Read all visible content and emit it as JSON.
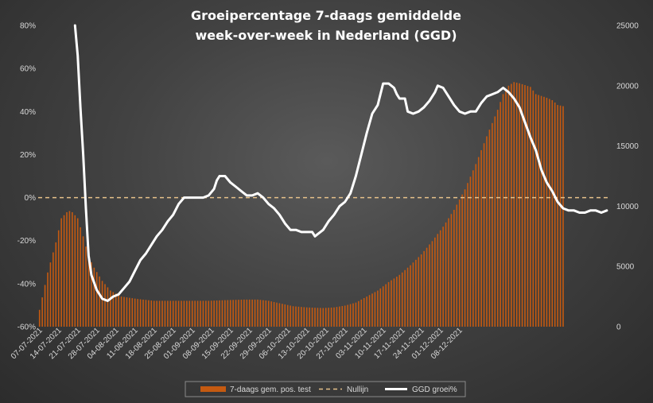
{
  "chart_data": {
    "type": "bar+line",
    "title": [
      "Groeipercentage 7-daags gemiddelde",
      "week-over-week in Nederland (GGD)"
    ],
    "x_dates": [
      "07-07-2021",
      "14-07-2021",
      "21-07-2021",
      "28-07-2021",
      "04-08-2021",
      "11-08-2021",
      "18-08-2021",
      "25-08-2021",
      "01-09-2021",
      "08-09-2021",
      "15-09-2021",
      "22-09-2021",
      "29-09-2021",
      "06-10-2021",
      "13-10-2021",
      "20-10-2021",
      "27-10-2021",
      "03-11-2021",
      "10-11-2021",
      "17-11-2021",
      "24-11-2021",
      "01-12-2021",
      "08-12-2021"
    ],
    "y_left": {
      "ticks": [
        "80%",
        "60%",
        "40%",
        "20%",
        "0%",
        "-20%",
        "-40%",
        "-60%"
      ],
      "min": -60,
      "max": 80
    },
    "y_right": {
      "ticks": [
        "25000",
        "20000",
        "15000",
        "10000",
        "5000",
        "0"
      ],
      "min": 0,
      "max": 25000
    },
    "bar_series": {
      "name": "7-daags gem. pos. test",
      "color": "#c55a11",
      "anchors": [
        [
          0,
          1400
        ],
        [
          3,
          4500
        ],
        [
          6,
          7000
        ],
        [
          8,
          9000
        ],
        [
          10,
          9500
        ],
        [
          11,
          9600
        ],
        [
          12,
          9500
        ],
        [
          14,
          9000
        ],
        [
          16,
          7500
        ],
        [
          18,
          5800
        ],
        [
          20,
          4900
        ],
        [
          23,
          3800
        ],
        [
          26,
          3000
        ],
        [
          30,
          2500
        ],
        [
          36,
          2300
        ],
        [
          42,
          2150
        ],
        [
          50,
          2150
        ],
        [
          56,
          2150
        ],
        [
          62,
          2150
        ],
        [
          68,
          2200
        ],
        [
          75,
          2250
        ],
        [
          80,
          2250
        ],
        [
          84,
          2150
        ],
        [
          88,
          1950
        ],
        [
          93,
          1700
        ],
        [
          98,
          1600
        ],
        [
          104,
          1550
        ],
        [
          108,
          1600
        ],
        [
          112,
          1750
        ],
        [
          116,
          2000
        ],
        [
          120,
          2500
        ],
        [
          124,
          3000
        ],
        [
          128,
          3700
        ],
        [
          132,
          4300
        ],
        [
          136,
          5100
        ],
        [
          140,
          6000
        ],
        [
          144,
          7100
        ],
        [
          148,
          8300
        ],
        [
          152,
          9700
        ],
        [
          156,
          11400
        ],
        [
          160,
          13500
        ],
        [
          164,
          15800
        ],
        [
          168,
          18000
        ],
        [
          170,
          19300
        ],
        [
          172,
          20000
        ],
        [
          174,
          20300
        ],
        [
          176,
          20200
        ],
        [
          180,
          19900
        ],
        [
          182,
          19300
        ],
        [
          186,
          19000
        ],
        [
          188,
          18800
        ],
        [
          190,
          18400
        ],
        [
          192,
          18300
        ]
      ]
    },
    "line_series": {
      "name": "GGD groei%",
      "color": "#ffffff",
      "points": [
        [
          13,
          80
        ],
        [
          14,
          66
        ],
        [
          15,
          42
        ],
        [
          16,
          20
        ],
        [
          17,
          -5
        ],
        [
          18,
          -27
        ],
        [
          19,
          -36
        ],
        [
          21,
          -43
        ],
        [
          23,
          -47
        ],
        [
          25,
          -48
        ],
        [
          27,
          -46
        ],
        [
          29,
          -45
        ],
        [
          31,
          -42
        ],
        [
          33,
          -39
        ],
        [
          35,
          -34
        ],
        [
          37,
          -29
        ],
        [
          39,
          -26
        ],
        [
          41,
          -22
        ],
        [
          43,
          -18
        ],
        [
          45,
          -15
        ],
        [
          47,
          -11
        ],
        [
          49,
          -8
        ],
        [
          51,
          -3
        ],
        [
          53,
          0
        ],
        [
          55,
          0
        ],
        [
          58,
          0
        ],
        [
          60,
          0
        ],
        [
          62,
          1
        ],
        [
          64,
          4
        ],
        [
          65,
          8
        ],
        [
          66,
          10
        ],
        [
          68,
          10
        ],
        [
          70,
          7
        ],
        [
          72,
          5
        ],
        [
          74,
          3
        ],
        [
          76,
          1
        ],
        [
          78,
          1
        ],
        [
          80,
          2
        ],
        [
          82,
          0
        ],
        [
          84,
          -3
        ],
        [
          86,
          -5
        ],
        [
          88,
          -8
        ],
        [
          90,
          -12
        ],
        [
          92,
          -15
        ],
        [
          94,
          -15
        ],
        [
          96,
          -16
        ],
        [
          98,
          -16
        ],
        [
          100,
          -16
        ],
        [
          101,
          -18
        ],
        [
          102,
          -17
        ],
        [
          104,
          -15
        ],
        [
          106,
          -11
        ],
        [
          108,
          -8
        ],
        [
          110,
          -4
        ],
        [
          112,
          -2
        ],
        [
          114,
          2
        ],
        [
          116,
          10
        ],
        [
          118,
          20
        ],
        [
          120,
          30
        ],
        [
          122,
          39
        ],
        [
          124,
          43
        ],
        [
          125,
          48
        ],
        [
          126,
          53
        ],
        [
          128,
          53
        ],
        [
          130,
          51
        ],
        [
          131,
          48
        ],
        [
          132,
          46
        ],
        [
          134,
          46
        ],
        [
          135,
          40
        ],
        [
          137,
          39
        ],
        [
          139,
          40
        ],
        [
          141,
          42
        ],
        [
          143,
          45
        ],
        [
          145,
          49
        ],
        [
          146,
          52
        ],
        [
          148,
          51
        ],
        [
          150,
          47
        ],
        [
          152,
          43
        ],
        [
          154,
          40
        ],
        [
          156,
          39
        ],
        [
          158,
          40
        ],
        [
          160,
          40
        ],
        [
          162,
          44
        ],
        [
          164,
          47
        ],
        [
          166,
          48
        ],
        [
          168,
          49
        ],
        [
          170,
          51
        ],
        [
          172,
          49
        ],
        [
          174,
          46
        ],
        [
          176,
          42
        ],
        [
          178,
          35
        ],
        [
          180,
          28
        ],
        [
          182,
          22
        ],
        [
          184,
          13
        ],
        [
          186,
          7
        ],
        [
          188,
          3
        ],
        [
          190,
          -2
        ],
        [
          192,
          -5
        ],
        [
          194,
          -6
        ],
        [
          196,
          -6
        ],
        [
          198,
          -7
        ],
        [
          200,
          -7
        ],
        [
          202,
          -6
        ],
        [
          204,
          -6
        ],
        [
          206,
          -7
        ],
        [
          208,
          -6
        ]
      ]
    },
    "reference_line": {
      "name": "Nullijn",
      "value": 0,
      "color": "#e6c18a",
      "dashed": true
    },
    "legend": {
      "placement": "bottom"
    },
    "grid": false
  }
}
